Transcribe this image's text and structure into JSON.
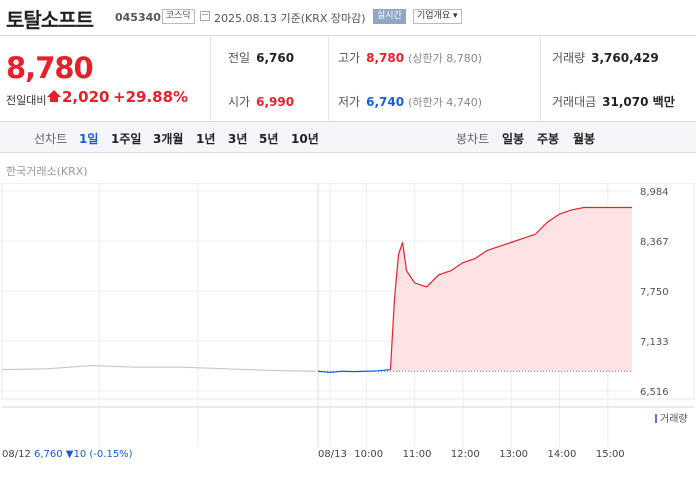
{
  "header": {
    "name": "토탈소프트",
    "code": "045340",
    "market": "코스닥",
    "date": "2025.08.13",
    "date_suffix": "기준(KRX 장마감)",
    "realtime": "실시간",
    "overview": "기업개요 ▾"
  },
  "summary": {
    "price": "8,780",
    "change_label": "전일대비",
    "change": "2,020",
    "change_pct": "+29.88%",
    "prev_label": "전일",
    "prev": "6,760",
    "high_label": "고가",
    "high": "8,780",
    "upper_limit": "(상한가 8,780)",
    "volume_label": "거래량",
    "volume": "3,760,429",
    "open_label": "시가",
    "open": "6,990",
    "low_label": "저가",
    "low": "6,740",
    "lower_limit": "(하한가 4,740)",
    "amount_label": "거래대금",
    "amount": "31,070 백만"
  },
  "periodbar": {
    "line_label": "선차트",
    "periods": [
      "1일",
      "1주일",
      "3개월",
      "1년",
      "3년",
      "5년",
      "10년"
    ],
    "candle_label": "봉차트",
    "candles": [
      "일봉",
      "주봉",
      "월봉"
    ]
  },
  "source": "한국거래소(KRX)",
  "colors": {
    "up": "#e8202b",
    "down": "#1a5cd7",
    "fill": "#fde3e4",
    "prev_line": "#c8c8c8",
    "volume": "#7b68c8"
  },
  "chart_data": {
    "type": "line",
    "y_ticks": [
      "8,984",
      "8,367",
      "7,750",
      "7,133",
      "6,516"
    ],
    "ylim": [
      6516,
      8984
    ],
    "x_ticks": [
      "08/12",
      "08/13",
      "10:00",
      "11:00",
      "12:00",
      "13:00",
      "14:00",
      "15:00"
    ],
    "legend": "거래량",
    "prev_day_info": "08/12  6,760 ▼10 (-0.15%)",
    "prev_day_close": 6760,
    "series": [
      {
        "x": [
          "08/12 09:00",
          "08/12 10:00",
          "08/12 11:00",
          "08/12 12:00",
          "08/12 13:00",
          "08/12 14:00",
          "08/12 15:00",
          "08/12 15:30"
        ],
        "values": [
          6780,
          6790,
          6830,
          6810,
          6810,
          6790,
          6770,
          6760
        ]
      },
      {
        "x": [
          "09:00",
          "09:15",
          "09:30",
          "09:45",
          "10:00",
          "10:15",
          "10:30",
          "10:35",
          "10:40",
          "10:45",
          "10:50",
          "11:00",
          "11:15",
          "11:30",
          "11:45",
          "12:00",
          "12:15",
          "12:30",
          "12:45",
          "13:00",
          "13:15",
          "13:30",
          "13:45",
          "14:00",
          "14:15",
          "14:30",
          "15:00",
          "15:30"
        ],
        "values": [
          6760,
          6745,
          6760,
          6755,
          6760,
          6765,
          6780,
          7650,
          8200,
          8350,
          8000,
          7850,
          7800,
          7950,
          8000,
          8100,
          8150,
          8250,
          8300,
          8350,
          8400,
          8450,
          8600,
          8700,
          8750,
          8780,
          8780,
          8780
        ]
      }
    ]
  }
}
